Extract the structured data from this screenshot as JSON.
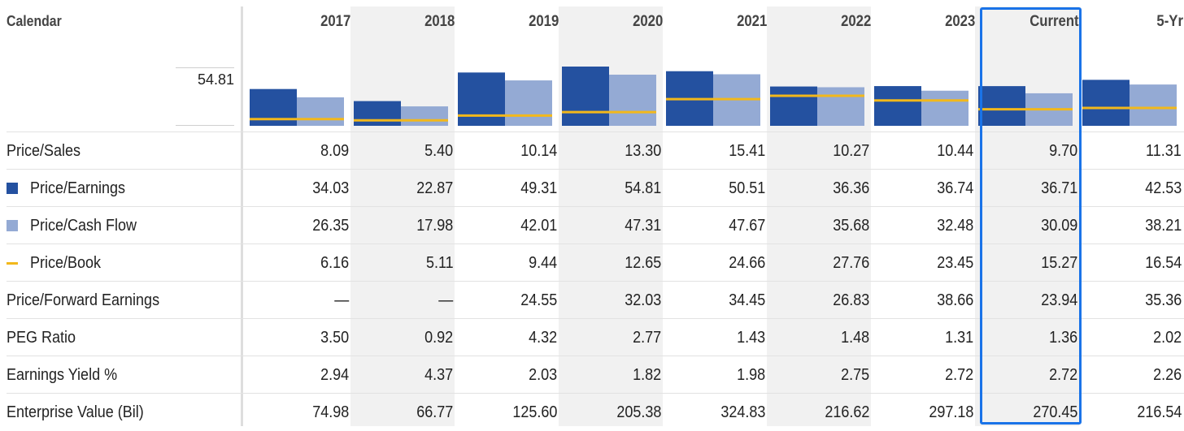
{
  "header": {
    "calendar_label": "Calendar",
    "axis_value": "54.81"
  },
  "columns": [
    "2017",
    "2018",
    "2019",
    "2020",
    "2021",
    "2022",
    "2023",
    "Current",
    "5-Yr"
  ],
  "highlighted_column": "Current",
  "rows": [
    {
      "label": "Price/Sales",
      "legend": "",
      "values": [
        "8.09",
        "5.40",
        "10.14",
        "13.30",
        "15.41",
        "10.27",
        "10.44",
        "9.70",
        "11.31"
      ]
    },
    {
      "label": "Price/Earnings",
      "legend": "square-dark",
      "values": [
        "34.03",
        "22.87",
        "49.31",
        "54.81",
        "50.51",
        "36.36",
        "36.74",
        "36.71",
        "42.53"
      ]
    },
    {
      "label": "Price/Cash Flow",
      "legend": "square-light",
      "values": [
        "26.35",
        "17.98",
        "42.01",
        "47.31",
        "47.67",
        "35.68",
        "32.48",
        "30.09",
        "38.21"
      ]
    },
    {
      "label": "Price/Book",
      "legend": "line-gold",
      "values": [
        "6.16",
        "5.11",
        "9.44",
        "12.65",
        "24.66",
        "27.76",
        "23.45",
        "15.27",
        "16.54"
      ]
    },
    {
      "label": "Price/Forward Earnings",
      "legend": "",
      "values": [
        "—",
        "—",
        "24.55",
        "32.03",
        "34.45",
        "26.83",
        "38.66",
        "23.94",
        "35.36"
      ]
    },
    {
      "label": "PEG Ratio",
      "legend": "",
      "values": [
        "3.50",
        "0.92",
        "4.32",
        "2.77",
        "1.43",
        "1.48",
        "1.31",
        "1.36",
        "2.02"
      ]
    },
    {
      "label": "Earnings Yield %",
      "legend": "",
      "values": [
        "2.94",
        "4.37",
        "2.03",
        "1.82",
        "1.98",
        "2.75",
        "2.72",
        "2.72",
        "2.26"
      ]
    },
    {
      "label": "Enterprise Value (Bil)",
      "legend": "",
      "values": [
        "74.98",
        "66.77",
        "125.60",
        "205.38",
        "324.83",
        "216.62",
        "297.18",
        "270.45",
        "216.54"
      ]
    }
  ],
  "colors": {
    "price_earnings": "#2451a0",
    "price_cash_flow": "#94aad4",
    "price_book": "#f2b81b",
    "highlight": "#1a73e8"
  },
  "chart_data": {
    "type": "bar",
    "categories": [
      "2017",
      "2018",
      "2019",
      "2020",
      "2021",
      "2022",
      "2023",
      "Current",
      "5-Yr"
    ],
    "ylim": [
      0,
      54.81
    ],
    "series": [
      {
        "name": "Price/Earnings",
        "kind": "bar",
        "values": [
          34.03,
          22.87,
          49.31,
          54.81,
          50.51,
          36.36,
          36.74,
          36.71,
          42.53
        ]
      },
      {
        "name": "Price/Cash Flow",
        "kind": "bar",
        "values": [
          26.35,
          17.98,
          42.01,
          47.31,
          47.67,
          35.68,
          32.48,
          30.09,
          38.21
        ]
      },
      {
        "name": "Price/Book",
        "kind": "line",
        "values": [
          6.16,
          5.11,
          9.44,
          12.65,
          24.66,
          27.76,
          23.45,
          15.27,
          16.54
        ]
      }
    ]
  }
}
